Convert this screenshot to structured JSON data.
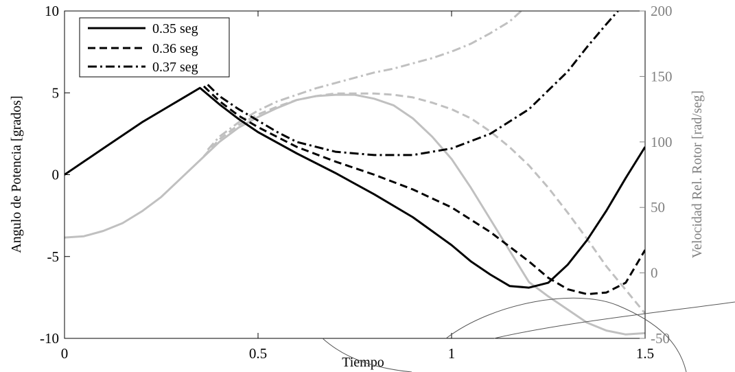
{
  "chart_data": {
    "type": "line",
    "title": "",
    "xlabel": "Tiempo",
    "ylabel_left": "Angulo de Potencia [grados]",
    "ylabel_right": "Velocidad Rel. Rotor [rad/seg]",
    "xlim": [
      0,
      1.5
    ],
    "ylim_left": [
      -10,
      10
    ],
    "ylim_right": [
      -50,
      200
    ],
    "x_ticks": [
      {
        "value": 0,
        "label": "0"
      },
      {
        "value": 0.5,
        "label": "0.5"
      },
      {
        "value": 1,
        "label": "1"
      },
      {
        "value": 1.5,
        "label": "1.5"
      }
    ],
    "y_left_ticks": [
      {
        "value": 10,
        "label": "10"
      },
      {
        "value": 5,
        "label": "5"
      },
      {
        "value": 0,
        "label": "0"
      },
      {
        "value": -5,
        "label": "-5"
      },
      {
        "value": -10,
        "label": "-10"
      }
    ],
    "y_right_ticks": [
      {
        "value": 200,
        "label": "200"
      },
      {
        "value": 150,
        "label": "150"
      },
      {
        "value": 100,
        "label": "100"
      },
      {
        "value": 50,
        "label": "50"
      },
      {
        "value": 0,
        "label": "0"
      },
      {
        "value": -50,
        "label": "-50"
      }
    ],
    "grid": false,
    "legend_position": "top-left",
    "legend": [
      {
        "label": "0.35 seg",
        "style": "solid"
      },
      {
        "label": "0.36 seg",
        "style": "dashed"
      },
      {
        "label": "0.37 seg",
        "style": "dashdot"
      }
    ],
    "colors": {
      "angle": "#000000",
      "speed": "#c0c0c0",
      "right_axis": "#808080"
    },
    "series": [
      {
        "axis": "left",
        "style": "solid",
        "color": "#000000",
        "points": [
          [
            0,
            0
          ],
          [
            0.05,
            0.8
          ],
          [
            0.1,
            1.6
          ],
          [
            0.15,
            2.4
          ],
          [
            0.2,
            3.2
          ],
          [
            0.25,
            3.9
          ],
          [
            0.3,
            4.6
          ],
          [
            0.35,
            5.3
          ],
          [
            0.4,
            4.3
          ],
          [
            0.45,
            3.4
          ],
          [
            0.5,
            2.6
          ],
          [
            0.6,
            1.3
          ],
          [
            0.7,
            0.1
          ],
          [
            0.8,
            -1.2
          ],
          [
            0.9,
            -2.6
          ],
          [
            1.0,
            -4.3
          ],
          [
            1.05,
            -5.3
          ],
          [
            1.1,
            -6.1
          ],
          [
            1.15,
            -6.8
          ],
          [
            1.2,
            -6.9
          ],
          [
            1.25,
            -6.6
          ],
          [
            1.3,
            -5.5
          ],
          [
            1.35,
            -4.0
          ],
          [
            1.4,
            -2.2
          ],
          [
            1.45,
            -0.2
          ],
          [
            1.5,
            1.7
          ]
        ]
      },
      {
        "axis": "left",
        "style": "dashed",
        "color": "#000000",
        "points": [
          [
            0.36,
            5.4
          ],
          [
            0.4,
            4.5
          ],
          [
            0.45,
            3.6
          ],
          [
            0.5,
            2.9
          ],
          [
            0.6,
            1.7
          ],
          [
            0.7,
            0.8
          ],
          [
            0.8,
            0.0
          ],
          [
            0.9,
            -0.9
          ],
          [
            1.0,
            -2.0
          ],
          [
            1.1,
            -3.5
          ],
          [
            1.2,
            -5.3
          ],
          [
            1.25,
            -6.3
          ],
          [
            1.3,
            -7.0
          ],
          [
            1.35,
            -7.3
          ],
          [
            1.4,
            -7.2
          ],
          [
            1.45,
            -6.6
          ],
          [
            1.5,
            -4.6
          ]
        ]
      },
      {
        "axis": "left",
        "style": "dashdot",
        "color": "#000000",
        "points": [
          [
            0.37,
            5.5
          ],
          [
            0.4,
            4.8
          ],
          [
            0.45,
            4.0
          ],
          [
            0.5,
            3.3
          ],
          [
            0.55,
            2.6
          ],
          [
            0.6,
            2.0
          ],
          [
            0.7,
            1.4
          ],
          [
            0.8,
            1.2
          ],
          [
            0.9,
            1.2
          ],
          [
            1.0,
            1.6
          ],
          [
            1.1,
            2.5
          ],
          [
            1.2,
            4.0
          ],
          [
            1.3,
            6.3
          ],
          [
            1.35,
            7.8
          ],
          [
            1.4,
            9.2
          ],
          [
            1.43,
            10.0
          ]
        ]
      },
      {
        "axis": "right",
        "style": "solid",
        "color": "#c0c0c0",
        "points": [
          [
            0,
            27
          ],
          [
            0.05,
            28
          ],
          [
            0.1,
            32
          ],
          [
            0.15,
            38
          ],
          [
            0.2,
            47
          ],
          [
            0.25,
            58
          ],
          [
            0.3,
            72
          ],
          [
            0.35,
            86
          ],
          [
            0.4,
            100
          ],
          [
            0.45,
            111
          ],
          [
            0.5,
            119
          ],
          [
            0.55,
            126
          ],
          [
            0.6,
            132
          ],
          [
            0.65,
            135
          ],
          [
            0.7,
            136
          ],
          [
            0.75,
            136
          ],
          [
            0.8,
            133
          ],
          [
            0.85,
            128
          ],
          [
            0.9,
            118
          ],
          [
            0.95,
            104
          ],
          [
            1.0,
            87
          ],
          [
            1.05,
            65
          ],
          [
            1.1,
            41
          ],
          [
            1.15,
            17
          ],
          [
            1.2,
            -7
          ],
          [
            1.25,
            -18
          ],
          [
            1.3,
            -28
          ],
          [
            1.35,
            -38
          ],
          [
            1.4,
            -44
          ],
          [
            1.45,
            -47
          ],
          [
            1.5,
            -46
          ]
        ]
      },
      {
        "axis": "right",
        "style": "dashed",
        "color": "#c0c0c0",
        "points": [
          [
            0.36,
            89
          ],
          [
            0.4,
            102
          ],
          [
            0.45,
            113
          ],
          [
            0.5,
            121
          ],
          [
            0.55,
            127
          ],
          [
            0.6,
            132
          ],
          [
            0.65,
            135
          ],
          [
            0.7,
            137
          ],
          [
            0.75,
            137
          ],
          [
            0.8,
            137
          ],
          [
            0.85,
            136
          ],
          [
            0.9,
            134
          ],
          [
            0.95,
            130
          ],
          [
            1.0,
            125
          ],
          [
            1.05,
            118
          ],
          [
            1.1,
            108
          ],
          [
            1.15,
            96
          ],
          [
            1.2,
            82
          ],
          [
            1.25,
            65
          ],
          [
            1.3,
            46
          ],
          [
            1.35,
            26
          ],
          [
            1.4,
            5
          ],
          [
            1.45,
            -13
          ],
          [
            1.5,
            -31
          ]
        ]
      },
      {
        "axis": "right",
        "style": "dashdot",
        "color": "#c0c0c0",
        "points": [
          [
            0.37,
            94
          ],
          [
            0.4,
            104
          ],
          [
            0.45,
            115
          ],
          [
            0.5,
            124
          ],
          [
            0.55,
            131
          ],
          [
            0.6,
            136
          ],
          [
            0.65,
            141
          ],
          [
            0.7,
            145
          ],
          [
            0.75,
            149
          ],
          [
            0.8,
            153
          ],
          [
            0.85,
            156
          ],
          [
            0.9,
            160
          ],
          [
            0.95,
            164
          ],
          [
            1.0,
            169
          ],
          [
            1.05,
            175
          ],
          [
            1.1,
            183
          ],
          [
            1.15,
            192
          ],
          [
            1.18,
            200
          ]
        ]
      }
    ]
  }
}
